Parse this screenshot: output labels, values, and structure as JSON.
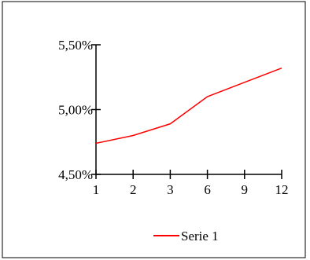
{
  "chart_data": {
    "type": "line",
    "categories": [
      "1",
      "2",
      "3",
      "6",
      "9",
      "12"
    ],
    "series": [
      {
        "name": "Serie 1",
        "values": [
          0.0474,
          0.048,
          0.0489,
          0.051,
          0.0521,
          0.0532
        ],
        "color": "#ff0000"
      }
    ],
    "y_tick_labels": [
      "4,50%",
      "5,00%",
      "5,50%"
    ],
    "y_ticks": [
      0.045,
      0.05,
      0.055
    ],
    "ylim": [
      0.045,
      0.055
    ],
    "grid": false,
    "legend_position": "bottom"
  }
}
